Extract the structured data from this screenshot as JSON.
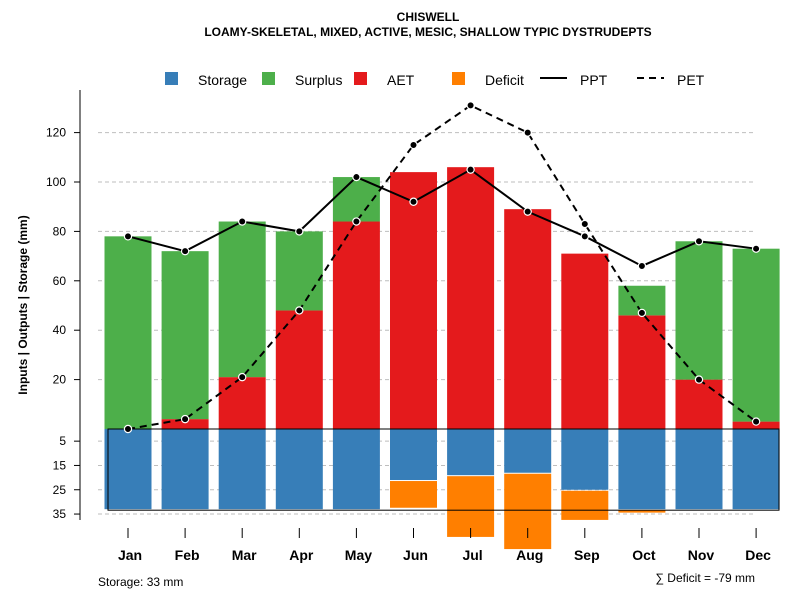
{
  "chart_data": {
    "type": "bar",
    "title": "CHISWELL",
    "subtitle": "LOAMY-SKELETAL, MIXED, ACTIVE, MESIC, SHALLOW TYPIC DYSTRUDEPTS",
    "ylabel": "Inputs | Outputs | Storage    (mm)",
    "categories": [
      "Jan",
      "Feb",
      "Mar",
      "Apr",
      "May",
      "Jun",
      "Jul",
      "Aug",
      "Sep",
      "Oct",
      "Nov",
      "Dec"
    ],
    "upper_panel": {
      "ylim": [
        0,
        130
      ],
      "yticks": [
        20,
        40,
        60,
        80,
        100,
        120
      ],
      "stack": [
        "AET",
        "Surplus"
      ],
      "series": [
        {
          "name": "AET",
          "values": [
            0,
            4,
            21,
            48,
            84,
            104,
            106,
            89,
            71,
            46,
            20,
            3
          ]
        },
        {
          "name": "Surplus",
          "values": [
            78,
            68,
            63,
            32,
            18,
            0,
            0,
            0,
            0,
            12,
            56,
            70
          ]
        },
        {
          "name": "PPT",
          "values": [
            78,
            72,
            84,
            80,
            102,
            92,
            105,
            88,
            78,
            66,
            76,
            73
          ]
        },
        {
          "name": "PET",
          "values": [
            0,
            4,
            21,
            48,
            84,
            115,
            131,
            120,
            83,
            47,
            20,
            3
          ]
        }
      ]
    },
    "lower_panel": {
      "ylim": [
        0,
        35
      ],
      "yticks": [
        5,
        15,
        25,
        35
      ],
      "series": [
        {
          "name": "Storage",
          "values": [
            33,
            33,
            33,
            33,
            33,
            21,
            19,
            18,
            25,
            33,
            33,
            33
          ]
        },
        {
          "name": "Deficit",
          "values": [
            0,
            0,
            0,
            0,
            0,
            11,
            25,
            31,
            12,
            1,
            0,
            0
          ]
        }
      ]
    },
    "legend": {
      "position": "top",
      "items": [
        {
          "label": "Storage",
          "kind": "box",
          "color": "#377EB8"
        },
        {
          "label": "Surplus",
          "kind": "box",
          "color": "#4DAF4A"
        },
        {
          "label": "AET",
          "kind": "box",
          "color": "#E41A1C"
        },
        {
          "label": "Deficit",
          "kind": "box",
          "color": "#FF7F00"
        },
        {
          "label": "PPT",
          "kind": "line",
          "dash": "solid"
        },
        {
          "label": "PET",
          "kind": "line",
          "dash": "dashed"
        }
      ]
    },
    "grid": true,
    "storage_note": "Storage: 33 mm",
    "deficit_note": "∑ Deficit = -79 mm"
  },
  "colors": {
    "storage": "#377EB8",
    "surplus": "#4DAF4A",
    "aet": "#E41A1C",
    "deficit": "#FF7F00",
    "grid": "#BEBEBE"
  }
}
